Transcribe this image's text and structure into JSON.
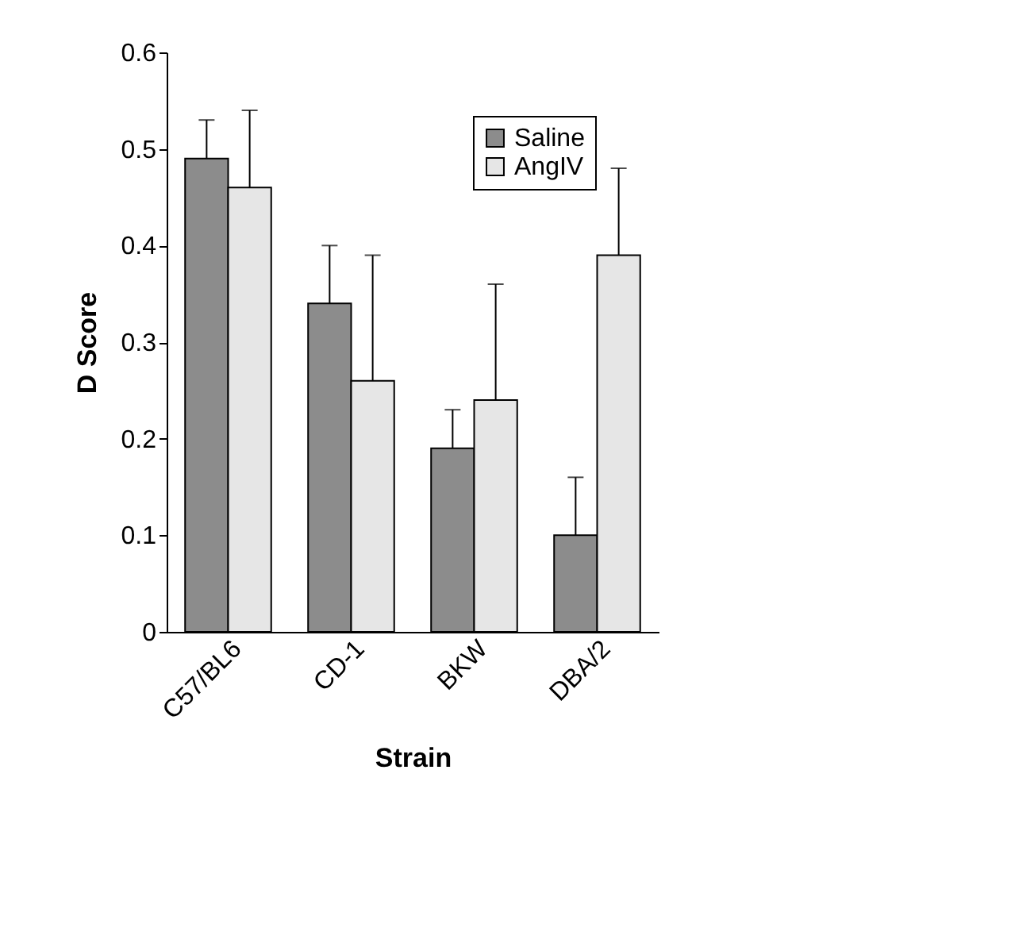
{
  "chart_data": {
    "type": "bar",
    "xlabel": "Strain",
    "ylabel": "D Score",
    "categories": [
      "C57/BL6",
      "CD-1",
      "BKW",
      "DBA/2"
    ],
    "series": [
      {
        "name": "Saline",
        "color": "#8c8c8c",
        "values": [
          0.49,
          0.34,
          0.19,
          0.1
        ],
        "errors": [
          [
            0.49,
            0.53
          ],
          [
            0.34,
            0.4
          ],
          [
            0.19,
            0.23
          ],
          [
            0.1,
            0.16
          ]
        ]
      },
      {
        "name": "AngIV",
        "color": "#e6e6e6",
        "values": [
          0.46,
          0.26,
          0.24,
          0.39
        ],
        "errors": [
          [
            0.46,
            0.54
          ],
          [
            0.26,
            0.39
          ],
          [
            0.24,
            0.36
          ],
          [
            0.39,
            0.48
          ]
        ]
      }
    ],
    "ylim": [
      0,
      0.6
    ],
    "yticks": [
      0,
      0.1,
      0.2,
      0.3,
      0.4,
      0.5,
      0.6
    ],
    "legend": "top right"
  }
}
